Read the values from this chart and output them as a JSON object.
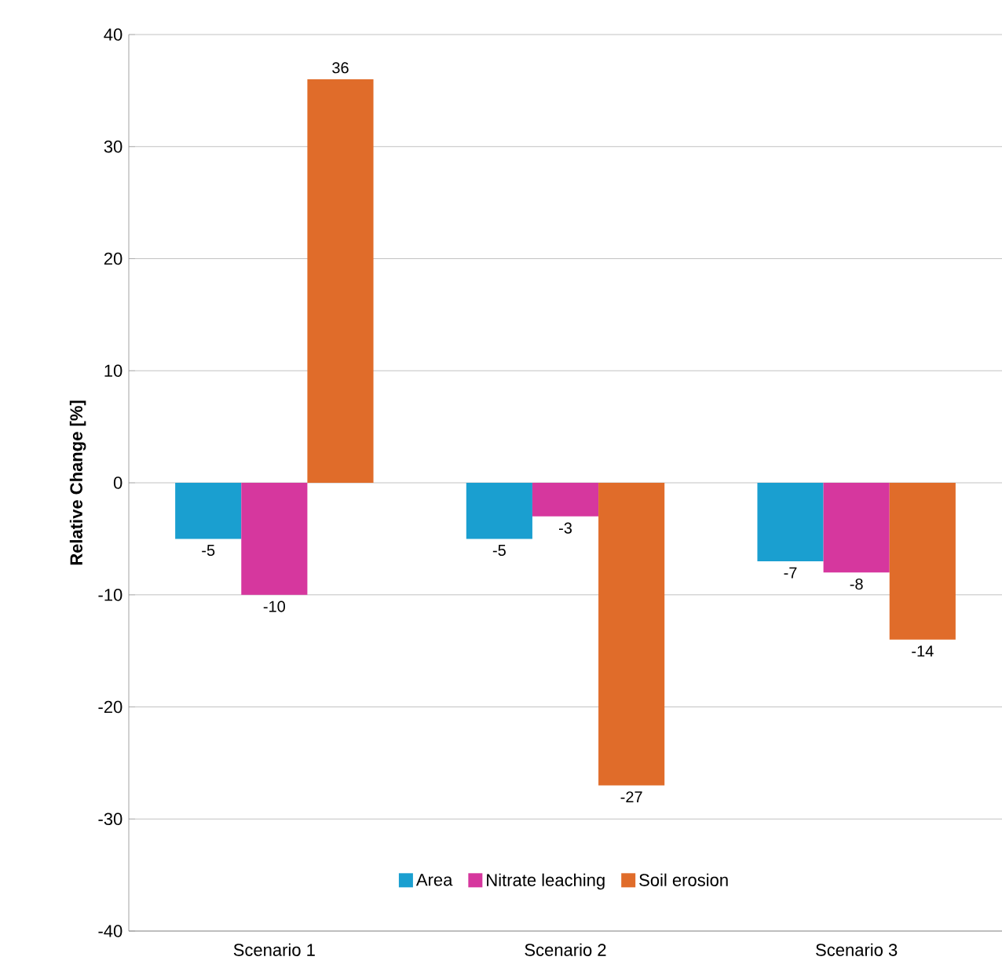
{
  "chart_data": {
    "type": "bar",
    "ylabel": "Relative Change [%]",
    "categories": [
      "Scenario 1",
      "Scenario 2",
      "Scenario 3"
    ],
    "series": [
      {
        "name": "Area",
        "color": "#1a9fd0",
        "values": [
          -5,
          -5,
          -7
        ]
      },
      {
        "name": "Nitrate leaching",
        "color": "#d6379e",
        "values": [
          -10,
          -3,
          -8
        ]
      },
      {
        "name": "Soil erosion",
        "color": "#e06c2a",
        "values": [
          36,
          -27,
          -14
        ]
      }
    ],
    "ylim": [
      -40,
      40
    ],
    "yticks": [
      -40,
      -30,
      -20,
      -10,
      0,
      10,
      20,
      30,
      40
    ],
    "grid": "y",
    "legend": "bottom",
    "data_labels": true
  }
}
